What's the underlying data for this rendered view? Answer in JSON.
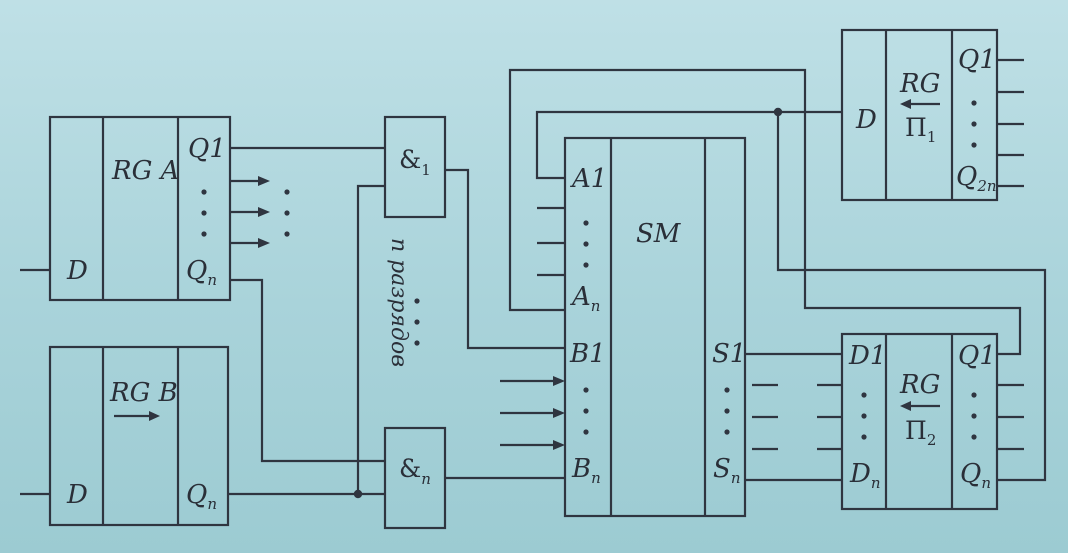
{
  "diagram": {
    "rg_a": {
      "title": "RG A",
      "d": "D",
      "q1": "Q1",
      "qn_main": "Q",
      "qn_sub": "n"
    },
    "rg_b": {
      "title": "RG B",
      "d": "D",
      "qn_main": "Q",
      "qn_sub": "n"
    },
    "and1": {
      "main": "&",
      "sub": "1"
    },
    "andn": {
      "main": "&",
      "sub": "n"
    },
    "bits_label": "n разрядов",
    "sm": {
      "title": "SM",
      "a1": "A1",
      "an_main": "A",
      "an_sub": "n",
      "b1": "B1",
      "bn_main": "B",
      "bn_sub": "n",
      "s1": "S1",
      "sn_main": "S",
      "sn_sub": "n"
    },
    "rg_p1": {
      "d": "D",
      "title": "RG",
      "sub_main": "Π",
      "sub_idx": "1",
      "q1": "Q1",
      "q2n_main": "Q",
      "q2n_sub": "2n"
    },
    "rg_p2": {
      "d1": "D1",
      "dn_main": "D",
      "dn_sub": "n",
      "title": "RG",
      "sub_main": "Π",
      "sub_idx": "2",
      "q1": "Q1",
      "qn_main": "Q",
      "qn_sub": "n"
    },
    "colors": {
      "ink": "#2f3540",
      "background": "#aed5dc"
    }
  }
}
